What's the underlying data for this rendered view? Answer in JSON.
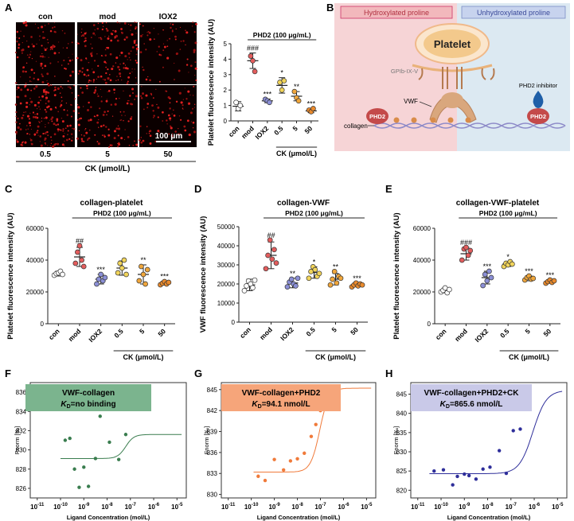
{
  "panel_labels": {
    "A": "A",
    "B": "B",
    "C": "C",
    "D": "D",
    "E": "E",
    "F": "F",
    "G": "G",
    "H": "H"
  },
  "panel_a": {
    "columns": [
      "con",
      "mod",
      "IOX2"
    ],
    "bottom_labels": [
      "0.5",
      "5",
      "50"
    ],
    "axis_label": "CK (μmol/L)",
    "scale_bar": "100 μm"
  },
  "panel_b": {
    "left_band": "Hydroxylated proline",
    "right_band": "Unhydroxylated proline",
    "platelet": "Platelet",
    "receptor": "GPIb-IX-V",
    "vwf": "VWF",
    "collagen": "collagen",
    "enzyme": "PHD2",
    "inhibitor": "PHD2 inhibitor",
    "colors": {
      "left_bg": "#f6d4d6",
      "right_bg": "#dce9f2",
      "platelet": "#f3c98c",
      "vwf": "#d9a77d",
      "phd2": "#c44a4a",
      "inhibitor": "#1f5fa8"
    }
  },
  "chart_data": [
    {
      "id": "A-right",
      "type": "scatter",
      "ylabel": "Platelet fluorescence intensity (AU)",
      "bracket": "PHD2 (100 μg/mL)",
      "group_label": "CK (μmol/L)",
      "categories": [
        "con",
        "mod",
        "IOX2",
        "0.5",
        "5",
        "50"
      ],
      "ylim": [
        0,
        5
      ],
      "yticks": [
        0,
        1,
        2,
        3,
        4,
        5
      ],
      "colors": [
        "#ffffff",
        "#e35d5d",
        "#8b8fd6",
        "#f1d45a",
        "#f0a63b",
        "#ea8a2c"
      ],
      "means": [
        0.95,
        3.9,
        1.3,
        2.3,
        1.6,
        0.65
      ],
      "sd": [
        0.3,
        0.5,
        0.12,
        0.5,
        0.3,
        0.12
      ],
      "points": [
        [
          1.2,
          0.8,
          1.0
        ],
        [
          4.2,
          3.9,
          3.2
        ],
        [
          1.4,
          1.3,
          1.2
        ],
        [
          2.5,
          2.0,
          2.6
        ],
        [
          1.9,
          1.5,
          1.3
        ],
        [
          0.7,
          0.6,
          0.8
        ]
      ],
      "annotations": [
        "",
        "###",
        "***",
        "*",
        "**",
        "***"
      ]
    },
    {
      "id": "C",
      "type": "scatter",
      "title": "collagen-platelet",
      "ylabel": "Platelet fluorescence intensity (AU)",
      "bracket": "PHD2 (100 μg/mL)",
      "group_label": "CK (μmol/L)",
      "categories": [
        "con",
        "mod",
        "IOX2",
        "0.5",
        "5",
        "50"
      ],
      "ylim": [
        0,
        60000
      ],
      "yticks": [
        0,
        20000,
        40000,
        60000
      ],
      "colors": [
        "#ffffff",
        "#e35d5d",
        "#8b8fd6",
        "#f1d45a",
        "#f0a63b",
        "#ea8a2c"
      ],
      "means": [
        31500,
        42000,
        28000,
        35000,
        31000,
        25500
      ],
      "sd": [
        1500,
        6000,
        3000,
        4500,
        6000,
        1200
      ],
      "points": [
        [
          30500,
          31500,
          32000,
          33000,
          31000
        ],
        [
          38000,
          45000,
          49000,
          40000,
          36000
        ],
        [
          25000,
          28000,
          31000,
          27000,
          29000
        ],
        [
          32000,
          38000,
          35000,
          40000,
          31000
        ],
        [
          27000,
          36000,
          31000,
          25000,
          34000
        ],
        [
          24500,
          25500,
          26500,
          25000,
          26000
        ]
      ],
      "annotations": [
        "",
        "##",
        "***",
        "",
        "**",
        "***"
      ]
    },
    {
      "id": "D",
      "type": "scatter",
      "title": "collagen-VWF",
      "ylabel": "VWF fluorescence intensity (AU)",
      "bracket": "PHD2 (100 μg/mL)",
      "group_label": "CK (μmol/L)",
      "categories": [
        "con",
        "mod",
        "IOX2",
        "0.5",
        "5",
        "50"
      ],
      "ylim": [
        0,
        50000
      ],
      "yticks": [
        0,
        10000,
        20000,
        30000,
        40000,
        50000
      ],
      "colors": [
        "#ffffff",
        "#e35d5d",
        "#8b8fd6",
        "#f1d45a",
        "#f0a63b",
        "#ea8a2c"
      ],
      "means": [
        19500,
        35000,
        20500,
        26000,
        22500,
        19500
      ],
      "sd": [
        3000,
        7000,
        2500,
        3000,
        3000,
        1000
      ],
      "points": [
        [
          16500,
          19000,
          21500,
          20000,
          18000,
          22000
        ],
        [
          28000,
          35000,
          43000,
          33000,
          38000,
          31000
        ],
        [
          18500,
          21000,
          22500,
          20000,
          19000,
          23000
        ],
        [
          23000,
          26500,
          29000,
          27500,
          24000,
          25500
        ],
        [
          19500,
          22500,
          26500,
          20500,
          24000,
          23000
        ],
        [
          18500,
          19500,
          20500,
          19000,
          20000,
          19500
        ]
      ],
      "annotations": [
        "",
        "##",
        "**",
        "*",
        "**",
        "***"
      ]
    },
    {
      "id": "E",
      "type": "scatter",
      "title": "collagen-VWF-platelet",
      "ylabel": "Platelet fluorescence intensity (AU)",
      "bracket": "PHD2 (100 μg/mL)",
      "group_label": "CK (μmol/L)",
      "categories": [
        "con",
        "mod",
        "IOX2",
        "0.5",
        "5",
        "50"
      ],
      "ylim": [
        0,
        60000
      ],
      "yticks": [
        0,
        20000,
        40000,
        60000
      ],
      "colors": [
        "#ffffff",
        "#e35d5d",
        "#8b8fd6",
        "#f1d45a",
        "#f0a63b",
        "#ea8a2c"
      ],
      "means": [
        21000,
        44000,
        29000,
        37500,
        28500,
        26500
      ],
      "sd": [
        1500,
        4000,
        4000,
        1500,
        1500,
        1000
      ],
      "points": [
        [
          20000,
          21000,
          22500,
          19500,
          21500
        ],
        [
          40000,
          47000,
          48000,
          43000,
          46000
        ],
        [
          24000,
          31000,
          27000,
          33000,
          29000
        ],
        [
          36000,
          38000,
          37000,
          39000,
          37500
        ],
        [
          27500,
          29000,
          30000,
          28000,
          28500
        ],
        [
          25500,
          26500,
          27500,
          26000,
          27000
        ]
      ],
      "annotations": [
        "",
        "###",
        "***",
        "*",
        "***",
        "***"
      ]
    },
    {
      "id": "F",
      "type": "scatter",
      "label": "VWF-collagen",
      "kd_value": "=no binding",
      "ylabel": "Fnorm [‰]",
      "xlabel": "Ligand Concentration (mol/L)",
      "ylim": [
        825,
        837
      ],
      "yticks": [
        826,
        828,
        830,
        832,
        834,
        836
      ],
      "xlim": [
        -11.3,
        -4.6
      ],
      "xticks": [
        -11,
        -10,
        -9,
        -8,
        -7,
        -6,
        -5
      ],
      "color": "#3a7d4f",
      "box_color": "#7bb48e",
      "points": [
        [
          -9.8,
          831.0
        ],
        [
          -9.6,
          831.2
        ],
        [
          -9.4,
          828.0
        ],
        [
          -9.2,
          826.1
        ],
        [
          -9.0,
          828.2
        ],
        [
          -8.8,
          826.2
        ],
        [
          -8.5,
          829.1
        ],
        [
          -8.3,
          833.5
        ],
        [
          -7.9,
          830.8
        ],
        [
          -7.5,
          829.0
        ],
        [
          -7.2,
          831.6
        ],
        [
          -6.9,
          834.6
        ]
      ],
      "fit": {
        "bottom": 829.1,
        "top": 831.6,
        "logkd": -7.2,
        "slope": 2.5
      }
    },
    {
      "id": "G",
      "type": "scatter",
      "label": "VWF-collagen+PHD2",
      "kd_value": "=94.1 nmol/L",
      "ylabel": "Fnorm [‰]",
      "xlabel": "Ligand Concentration (mol/L)",
      "ylim": [
        829.5,
        846
      ],
      "yticks": [
        830,
        833,
        836,
        839,
        842,
        845
      ],
      "xlim": [
        -11.3,
        -4.6
      ],
      "xticks": [
        -11,
        -10,
        -9,
        -8,
        -7,
        -6,
        -5
      ],
      "color": "#f07a3a",
      "box_color": "#f6a57a",
      "points": [
        [
          -9.7,
          832.6
        ],
        [
          -9.4,
          832.0
        ],
        [
          -9.0,
          835.0
        ],
        [
          -8.6,
          833.5
        ],
        [
          -8.3,
          834.8
        ],
        [
          -8.0,
          835.1
        ],
        [
          -7.7,
          835.9
        ],
        [
          -7.4,
          838.3
        ],
        [
          -7.2,
          840.0
        ],
        [
          -7.0,
          842.0
        ],
        [
          -6.8,
          845.3
        ],
        [
          -6.6,
          843.0
        ]
      ],
      "fit": {
        "bottom": 833.2,
        "top": 845.2,
        "logkd": -7.03,
        "slope": 2.2
      }
    },
    {
      "id": "H",
      "type": "scatter",
      "label": "VWF-collagen+PHD2+CK",
      "kd_value": "=865.6 nmol/L",
      "ylabel": "Fnorm [‰]",
      "xlabel": "Ligand Concentration (mol/L)",
      "ylim": [
        818,
        848
      ],
      "yticks": [
        820,
        825,
        830,
        835,
        840,
        845
      ],
      "xlim": [
        -11.3,
        -4.6
      ],
      "xticks": [
        -11,
        -10,
        -9,
        -8,
        -7,
        -6,
        -5
      ],
      "color": "#2e2e9a",
      "box_color": "#c9c9e8",
      "points": [
        [
          -10.3,
          825.0
        ],
        [
          -9.9,
          825.3
        ],
        [
          -9.5,
          821.4
        ],
        [
          -9.3,
          823.6
        ],
        [
          -9.0,
          824.2
        ],
        [
          -8.8,
          823.8
        ],
        [
          -8.5,
          822.9
        ],
        [
          -8.2,
          825.5
        ],
        [
          -7.9,
          826.0
        ],
        [
          -7.5,
          830.3
        ],
        [
          -7.2,
          824.4
        ],
        [
          -6.9,
          835.5
        ],
        [
          -6.6,
          835.9
        ]
      ],
      "fit": {
        "bottom": 824.3,
        "top": 846.0,
        "logkd": -6.06,
        "slope": 1.5
      }
    }
  ]
}
